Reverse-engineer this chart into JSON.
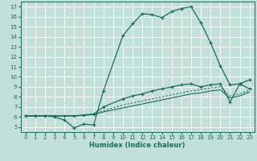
{
  "xlabel": "Humidex (Indice chaleur)",
  "bg_color": "#c2e0d8",
  "grid_color": "#ffffff",
  "line_color": "#1a6b5a",
  "xlim": [
    -0.5,
    23.5
  ],
  "ylim": [
    4.5,
    17.5
  ],
  "xticks": [
    0,
    1,
    2,
    3,
    4,
    5,
    6,
    7,
    8,
    9,
    10,
    11,
    12,
    13,
    14,
    15,
    16,
    17,
    18,
    19,
    20,
    21,
    22,
    23
  ],
  "yticks": [
    5,
    6,
    7,
    8,
    9,
    10,
    11,
    12,
    13,
    14,
    15,
    16,
    17
  ],
  "line1_x": [
    0,
    1,
    2,
    3,
    4,
    5,
    6,
    7,
    8,
    10,
    11,
    12,
    13,
    14,
    15,
    16,
    17,
    18,
    19,
    20,
    21,
    22,
    23
  ],
  "line1_y": [
    6.1,
    6.1,
    6.1,
    6.0,
    5.7,
    4.9,
    5.3,
    5.2,
    8.6,
    14.1,
    15.3,
    16.3,
    16.2,
    15.9,
    16.5,
    16.8,
    17.0,
    15.4,
    13.4,
    11.1,
    9.2,
    9.3,
    9.7
  ],
  "line2_x": [
    0,
    1,
    2,
    3,
    4,
    5,
    6,
    7,
    8,
    10,
    11,
    12,
    13,
    14,
    15,
    16,
    17,
    18,
    19,
    20,
    21,
    22,
    23
  ],
  "line2_y": [
    6.1,
    6.1,
    6.1,
    6.1,
    6.1,
    6.1,
    6.2,
    6.3,
    7.0,
    7.8,
    8.1,
    8.3,
    8.6,
    8.8,
    9.0,
    9.2,
    9.3,
    9.0,
    9.2,
    9.3,
    7.5,
    9.3,
    8.8
  ],
  "line3_x": [
    0,
    1,
    2,
    3,
    4,
    5,
    6,
    7,
    8,
    10,
    11,
    12,
    13,
    14,
    15,
    16,
    17,
    18,
    19,
    20,
    21,
    22,
    23
  ],
  "line3_y": [
    6.1,
    6.1,
    6.1,
    6.1,
    6.1,
    6.1,
    6.2,
    6.3,
    6.6,
    7.2,
    7.4,
    7.6,
    7.8,
    8.0,
    8.2,
    8.4,
    8.6,
    8.7,
    8.9,
    9.0,
    8.1,
    8.3,
    8.7
  ],
  "line4_x": [
    0,
    1,
    2,
    3,
    4,
    5,
    6,
    7,
    8,
    10,
    11,
    12,
    13,
    14,
    15,
    16,
    17,
    18,
    19,
    20,
    21,
    22,
    23
  ],
  "line4_y": [
    6.1,
    6.1,
    6.1,
    6.1,
    6.1,
    6.1,
    6.15,
    6.25,
    6.5,
    6.9,
    7.1,
    7.3,
    7.5,
    7.7,
    7.9,
    8.1,
    8.3,
    8.4,
    8.6,
    8.7,
    7.9,
    8.1,
    8.5
  ]
}
